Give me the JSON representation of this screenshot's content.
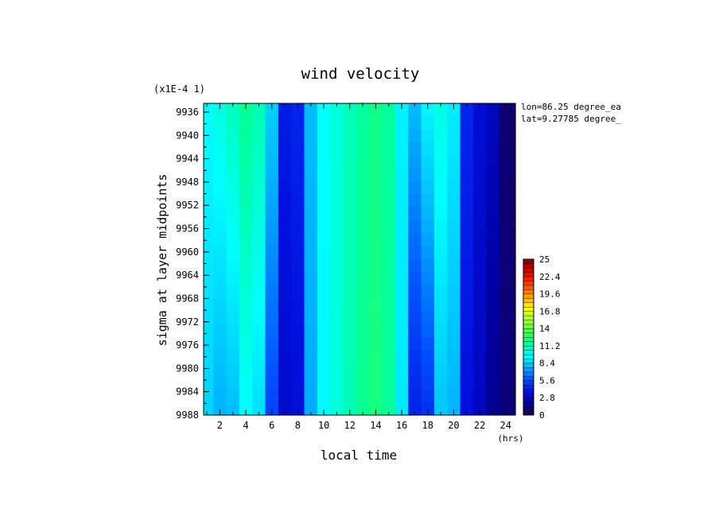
{
  "chart_data": {
    "type": "heatmap",
    "title": "wind velocity",
    "scale_note": "(x1E-4 1)",
    "xlabel": "local time",
    "xunit": "(hrs)",
    "ylabel": "sigma at layer midpoints",
    "xlim": [
      0.75,
      24.75
    ],
    "ylim": [
      9934.5,
      9988
    ],
    "y_reversed": true,
    "x_ticks": [
      2,
      4,
      6,
      8,
      10,
      12,
      14,
      16,
      18,
      20,
      22,
      24
    ],
    "y_ticks": [
      9936,
      9940,
      9944,
      9948,
      9952,
      9956,
      9960,
      9964,
      9968,
      9972,
      9976,
      9980,
      9984,
      9988
    ],
    "annotations": [
      "lon=86.25 degree_ea",
      "lat=9.27785 degree_"
    ],
    "colorbar": {
      "min": 0,
      "max": 25,
      "step": 0.7,
      "tick_labels": [
        "0",
        "2.8",
        "5.6",
        "8.4",
        "11.2",
        "14",
        "16.8",
        "19.6",
        "22.4",
        "25"
      ],
      "colors": [
        "#1a0040",
        "#0000a0",
        "#0010e0",
        "#0050ff",
        "#00b0ff",
        "#00ffff",
        "#00ffa0",
        "#40ff40",
        "#a0ff40",
        "#ffff00",
        "#ffa000",
        "#ff4000",
        "#e00000",
        "#800000"
      ]
    },
    "x": [
      1,
      2,
      3,
      4,
      5,
      6,
      7,
      8,
      9,
      10,
      11,
      12,
      13,
      14,
      15,
      16,
      17,
      18,
      19,
      20,
      21,
      22,
      23,
      24
    ],
    "y": [
      9936,
      9988
    ],
    "values_top": [
      9.6,
      10.3,
      11.0,
      11.8,
      11.2,
      8.5,
      4.2,
      4.5,
      8.0,
      9.6,
      10.3,
      11.0,
      11.6,
      12.0,
      11.6,
      9.3,
      8.0,
      9.5,
      10.2,
      9.2,
      4.5,
      3.5,
      2.8,
      1.0
    ],
    "values_bottom": [
      8.5,
      7.7,
      8.0,
      9.6,
      8.8,
      5.4,
      3.2,
      3.6,
      7.6,
      9.5,
      10.3,
      11.1,
      11.8,
      12.2,
      11.7,
      9.1,
      4.3,
      4.8,
      8.2,
      7.8,
      3.8,
      2.8,
      1.6,
      1.2
    ]
  }
}
